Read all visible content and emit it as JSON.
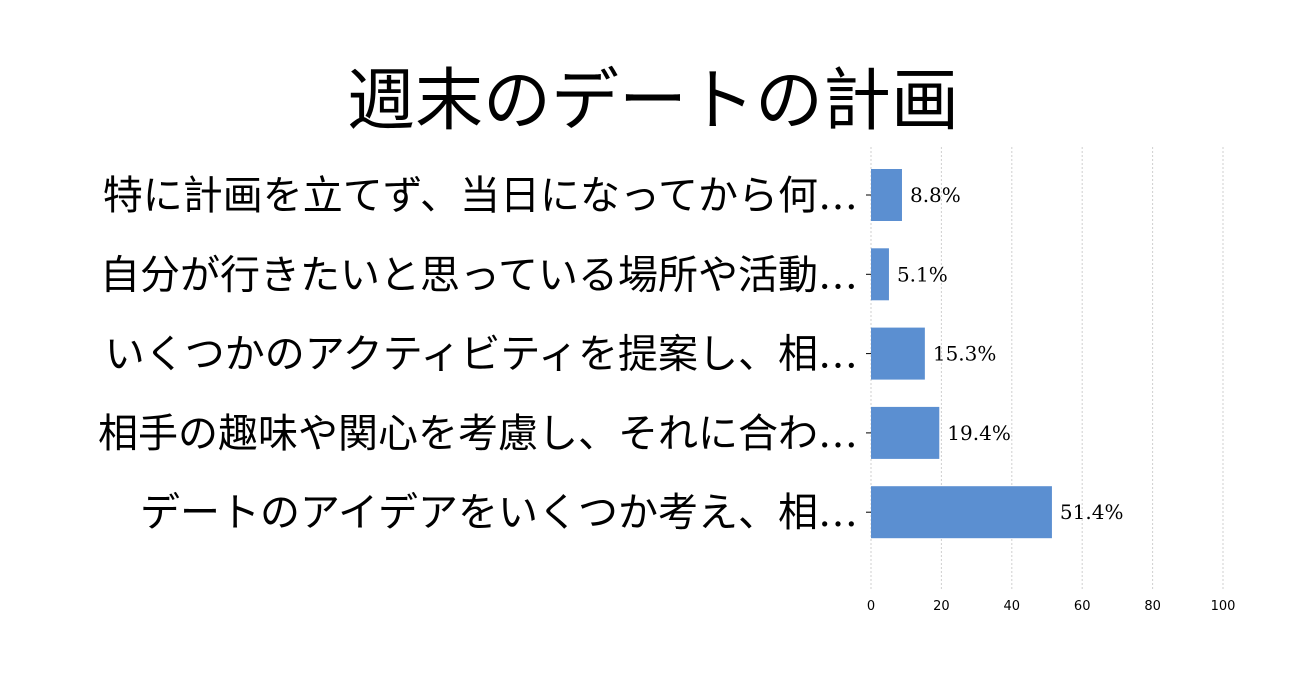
{
  "chart_data": {
    "type": "bar",
    "orientation": "horizontal",
    "title": "週末のデートの計画",
    "categories": [
      "特に計画を立てず、当日になってから何…",
      "自分が行きたいと思っている場所や活動…",
      "いくつかのアクティビティを提案し、相…",
      "相手の趣味や関心を考慮し、それに合わ…",
      "デートのアイデアをいくつか考え、相…"
    ],
    "values": [
      8.8,
      5.1,
      15.3,
      19.4,
      51.4
    ],
    "value_labels": [
      "8.8%",
      "5.1%",
      "15.3%",
      "19.4%",
      "51.4%"
    ],
    "xlim": [
      0,
      100
    ],
    "xticks": [
      "0",
      "20",
      "40",
      "60",
      "80",
      "100"
    ],
    "xlabel": "",
    "ylabel": "",
    "grid": true,
    "bar_color": "#5b8fd1"
  }
}
